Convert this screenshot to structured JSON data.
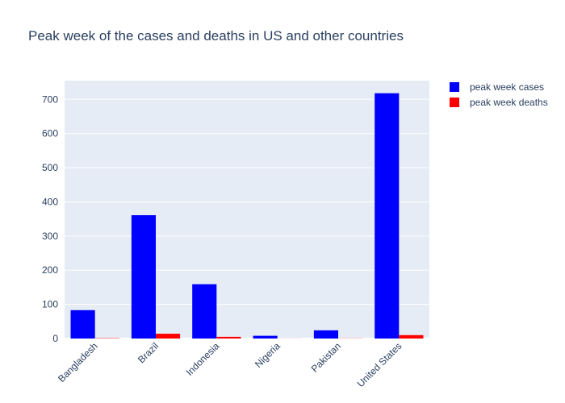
{
  "chart_data": {
    "type": "bar",
    "title": "Peak week of the cases and deaths in US and other countries",
    "xlabel": "",
    "ylabel": "",
    "categories": [
      "Bangladesh",
      "Brazil",
      "Indonesia",
      "Nigeria",
      "Pakistan",
      "United States"
    ],
    "series": [
      {
        "name": "peak week cases",
        "color": "#0000ff",
        "values": [
          83,
          361,
          159,
          8,
          24,
          718
        ]
      },
      {
        "name": "peak week deaths",
        "color": "#ff0000",
        "values": [
          1,
          14,
          5,
          0.2,
          0.5,
          10
        ]
      }
    ],
    "ylim": [
      0,
      755
    ],
    "yticks": [
      0,
      100,
      200,
      300,
      400,
      500,
      600,
      700
    ],
    "grid": true,
    "legend_position": "top-right",
    "plot_background": "#e5ecf6"
  }
}
